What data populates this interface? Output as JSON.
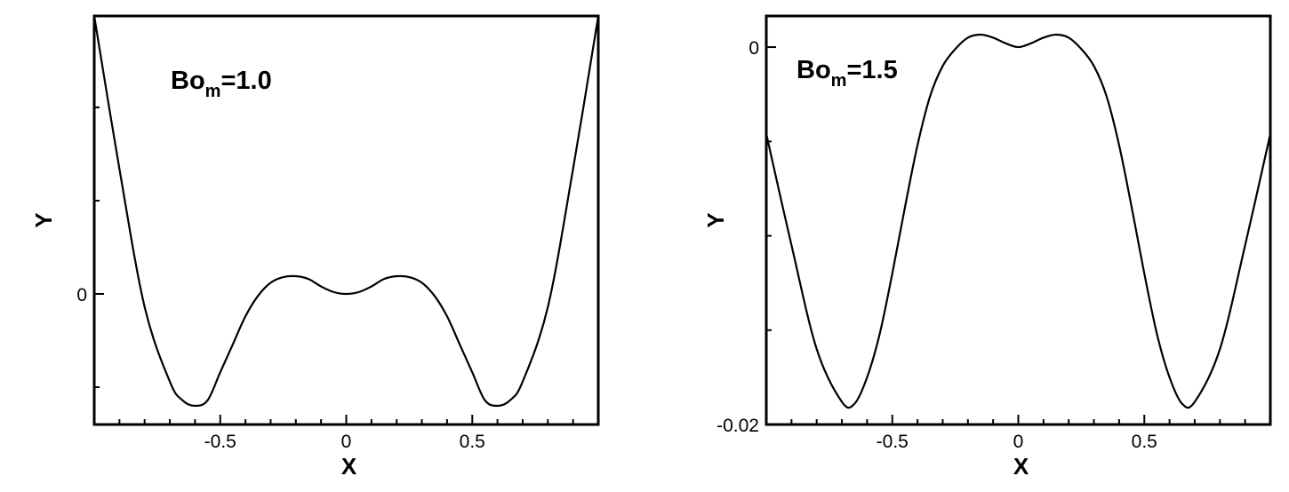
{
  "chart_data": [
    {
      "type": "line",
      "xlabel": "X",
      "ylabel": "Y",
      "annotation": {
        "base": "Bo",
        "sub": "m",
        "rest": "=1.0"
      },
      "xlim": [
        -1,
        1
      ],
      "ylim": [
        -0.007,
        0.0149
      ],
      "xticks": [
        -0.5,
        0,
        0.5
      ],
      "xticks_minor": [
        -0.9,
        -0.8,
        -0.7,
        -0.6,
        -0.4,
        -0.3,
        -0.2,
        -0.1,
        0.1,
        0.2,
        0.3,
        0.4,
        0.6,
        0.7,
        0.8,
        0.9
      ],
      "yticks": [
        0
      ],
      "yticks_minor": [
        -0.005,
        0.005,
        0.01
      ],
      "color": "#000000",
      "x": [
        -1,
        -0.9,
        -0.8,
        -0.7,
        -0.65,
        -0.6,
        -0.55,
        -0.5,
        -0.45,
        -0.4,
        -0.35,
        -0.3,
        -0.25,
        -0.2,
        -0.15,
        -0.1,
        -0.05,
        0,
        0.05,
        0.1,
        0.15,
        0.2,
        0.25,
        0.3,
        0.35,
        0.4,
        0.45,
        0.5,
        0.55,
        0.6,
        0.65,
        0.7,
        0.8,
        0.9,
        1
      ],
      "values": [
        0.0149,
        0.0067,
        -0.0007,
        -0.0047,
        -0.0057,
        -0.006,
        -0.0057,
        -0.0042,
        -0.0027,
        -0.0012,
        -0.0001,
        0.0006,
        0.0009,
        0.00095,
        0.0008,
        0.0004,
        0.0001,
        0,
        0.0001,
        0.0004,
        0.0008,
        0.00095,
        0.0009,
        0.0006,
        -0.0001,
        -0.0012,
        -0.0027,
        -0.0042,
        -0.0057,
        -0.006,
        -0.0057,
        -0.0047,
        -0.0007,
        0.0067,
        0.0149
      ]
    },
    {
      "type": "line",
      "xlabel": "X",
      "ylabel": "Y",
      "annotation": {
        "base": "Bo",
        "sub": "m",
        "rest": "=1.5"
      },
      "xlim": [
        -1,
        1
      ],
      "ylim": [
        -0.02,
        0.00165
      ],
      "xticks": [
        -0.5,
        0,
        0.5
      ],
      "xticks_minor": [
        -0.9,
        -0.8,
        -0.7,
        -0.6,
        -0.4,
        -0.3,
        -0.2,
        -0.1,
        0.1,
        0.2,
        0.3,
        0.4,
        0.6,
        0.7,
        0.8,
        0.9
      ],
      "yticks": [
        -0.02,
        0
      ],
      "yticks_minor": [
        -0.015,
        -0.01,
        -0.005
      ],
      "color": "#000000",
      "x": [
        -1,
        -0.9,
        -0.8,
        -0.7,
        -0.65,
        -0.6,
        -0.55,
        -0.5,
        -0.45,
        -0.4,
        -0.35,
        -0.3,
        -0.25,
        -0.2,
        -0.15,
        -0.1,
        -0.05,
        0,
        0.05,
        0.1,
        0.15,
        0.2,
        0.25,
        0.3,
        0.35,
        0.4,
        0.45,
        0.5,
        0.55,
        0.6,
        0.65,
        0.7,
        0.8,
        0.9,
        1
      ],
      "values": [
        -0.0046,
        -0.0105,
        -0.016,
        -0.0188,
        -0.0189,
        -0.0175,
        -0.0152,
        -0.012,
        -0.0085,
        -0.0052,
        -0.0026,
        -0.001,
        -0.0001,
        0.0005,
        0.00066,
        0.0005,
        0.0002,
        0,
        0.0002,
        0.0005,
        0.00066,
        0.0005,
        -0.0001,
        -0.001,
        -0.0026,
        -0.0052,
        -0.0085,
        -0.012,
        -0.0152,
        -0.0175,
        -0.0189,
        -0.0188,
        -0.016,
        -0.0105,
        -0.0046
      ]
    }
  ]
}
